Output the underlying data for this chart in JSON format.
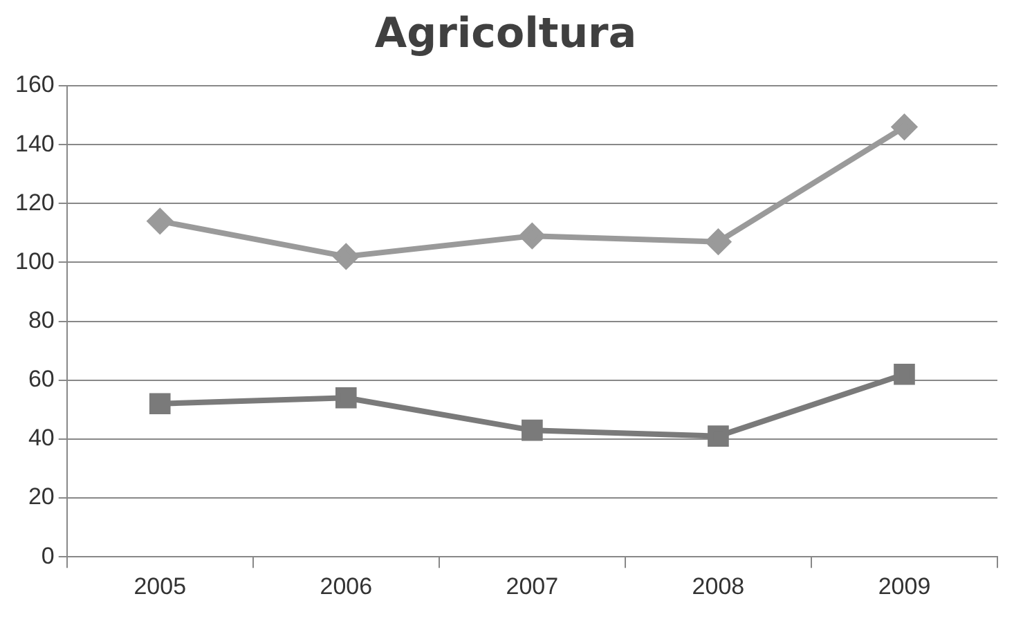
{
  "chart_data": {
    "type": "line",
    "title": "Agricoltura",
    "categories": [
      "2005",
      "2006",
      "2007",
      "2008",
      "2009"
    ],
    "series": [
      {
        "color": "#9a9a9a",
        "marker": "diamond",
        "values": [
          114,
          102,
          109,
          107,
          146
        ]
      },
      {
        "color": "#7a7a7a",
        "marker": "square",
        "values": [
          52,
          54,
          43,
          41,
          62
        ]
      }
    ],
    "ylim": [
      0,
      160
    ],
    "yticks": [
      0,
      20,
      40,
      60,
      80,
      100,
      120,
      140,
      160
    ],
    "grid": "y",
    "legend": false
  }
}
